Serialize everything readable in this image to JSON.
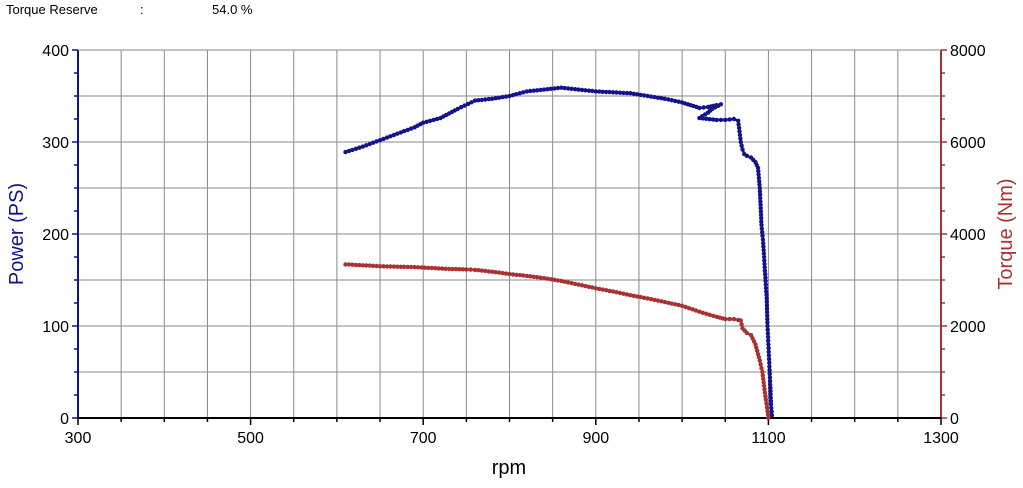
{
  "header": {
    "label": "Torque Reserve",
    "separator": ":",
    "value": "54.0 %"
  },
  "colors": {
    "power": "#13138e",
    "torque": "#a83232",
    "grid": "#8a8a8a",
    "axis": "#000000"
  },
  "chart_data": {
    "type": "scatter",
    "xlabel": "rpm",
    "ylabel": "Power (PS)",
    "y2label": "Torque (Nm)",
    "xlim": [
      300,
      1300
    ],
    "ylim": [
      0,
      400
    ],
    "y2lim": [
      0,
      8000
    ],
    "x_ticks": [
      "300",
      "500",
      "700",
      "900",
      "1100",
      "1300"
    ],
    "y_ticks": [
      "0",
      "100",
      "200",
      "300",
      "400"
    ],
    "y2_ticks": [
      "0",
      "2000",
      "4000",
      "6000",
      "8000"
    ],
    "grid": true,
    "series": [
      {
        "key": "power",
        "axis": "left",
        "x": [
          610,
          630,
          650,
          670,
          690,
          700,
          720,
          740,
          760,
          780,
          800,
          820,
          840,
          860,
          880,
          900,
          920,
          940,
          960,
          980,
          1000,
          1010,
          1020,
          1030,
          1040,
          1045,
          1035,
          1030,
          1020,
          1040,
          1050,
          1060,
          1065,
          1068,
          1070,
          1072,
          1075,
          1080,
          1085,
          1088,
          1090,
          1092,
          1094,
          1096,
          1098,
          1099,
          1100,
          1101,
          1102,
          1103,
          1104
        ],
        "values": [
          289,
          295,
          302,
          309,
          316,
          321,
          326,
          336,
          345,
          347,
          350,
          355,
          357,
          359,
          357,
          355,
          354,
          353,
          350,
          347,
          343,
          340,
          337,
          338,
          340,
          341,
          336,
          332,
          326,
          324,
          324,
          325,
          323,
          300,
          292,
          287,
          285,
          283,
          278,
          272,
          250,
          210,
          190,
          160,
          130,
          100,
          80,
          60,
          40,
          15,
          3
        ]
      },
      {
        "key": "torque",
        "axis": "right",
        "x": [
          610,
          630,
          650,
          670,
          690,
          710,
          730,
          750,
          760,
          780,
          800,
          820,
          840,
          860,
          880,
          900,
          920,
          940,
          960,
          980,
          1000,
          1020,
          1040,
          1050,
          1060,
          1065,
          1068,
          1070,
          1075,
          1080,
          1085,
          1090,
          1093,
          1095,
          1097,
          1099,
          1100
        ],
        "values": [
          3340,
          3320,
          3300,
          3290,
          3280,
          3260,
          3240,
          3230,
          3220,
          3180,
          3130,
          3090,
          3040,
          2980,
          2900,
          2820,
          2750,
          2670,
          2600,
          2520,
          2440,
          2310,
          2200,
          2150,
          2150,
          2130,
          2120,
          1950,
          1850,
          1800,
          1600,
          1250,
          1000,
          700,
          400,
          150,
          0
        ]
      }
    ]
  }
}
